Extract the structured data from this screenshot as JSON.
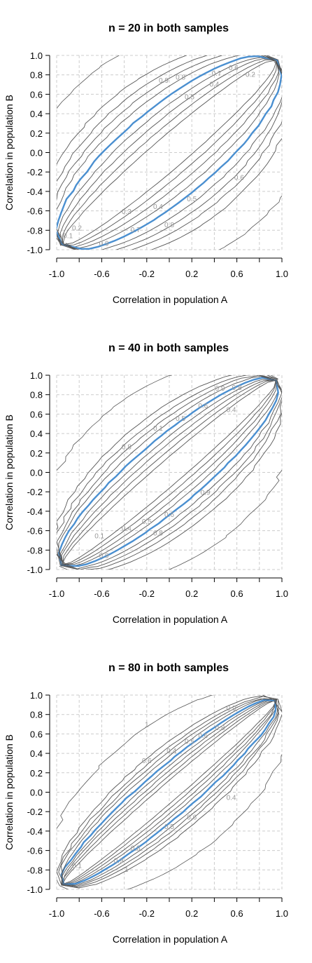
{
  "chart_data": [
    {
      "type": "contour",
      "title": "n = 20 in both samples",
      "xlabel": "Correlation in population A",
      "ylabel": "Correlation in population B",
      "xlim": [
        -1.0,
        1.0
      ],
      "ylim": [
        -1.0,
        1.0
      ],
      "x_ticks": [
        "-1.0",
        "-0.6",
        "-0.2",
        "0.2",
        "0.6",
        "1.0"
      ],
      "y_ticks": [
        "1.0",
        "0.8",
        "0.6",
        "0.4",
        "0.2",
        "0.0",
        "-0.2",
        "-0.4",
        "-0.6",
        "-0.8",
        "-1.0"
      ],
      "grid": true,
      "contour_levels": [
        0.1,
        0.2,
        0.3,
        0.4,
        0.5,
        0.6,
        0.7,
        0.8,
        0.9,
        1
      ],
      "highlight_level": 0.8,
      "highlight_color": "#4a8fd0",
      "contour_color": "#555555",
      "contour_labels": [
        {
          "text": "0.9",
          "x": -0.05,
          "y": 0.72
        },
        {
          "text": "0.8",
          "x": 0.1,
          "y": 0.75
        },
        {
          "text": "0.7",
          "x": 0.42,
          "y": 0.79
        },
        {
          "text": "0.6",
          "x": 0.57,
          "y": 0.85
        },
        {
          "text": "0.5",
          "x": 0.18,
          "y": 0.55
        },
        {
          "text": "0.4",
          "x": 0.4,
          "y": 0.68
        },
        {
          "text": "0.2",
          "x": 0.72,
          "y": 0.78
        },
        {
          "text": "0.6",
          "x": 0.62,
          "y": -0.28
        },
        {
          "text": "0.5",
          "x": 0.2,
          "y": -0.5
        },
        {
          "text": "0.4",
          "x": -0.1,
          "y": -0.58
        },
        {
          "text": "0.3",
          "x": -0.38,
          "y": -0.63
        },
        {
          "text": "0.8",
          "x": -0.0,
          "y": -0.77
        },
        {
          "text": "0.7",
          "x": -0.3,
          "y": -0.82
        },
        {
          "text": "0.2",
          "x": -0.82,
          "y": -0.8
        },
        {
          "text": "0.1",
          "x": -0.9,
          "y": -0.88
        },
        {
          "text": "0.9",
          "x": -0.58,
          "y": -0.96
        }
      ],
      "width_scale": 1.0
    },
    {
      "type": "contour",
      "title": "n = 40 in both samples",
      "xlabel": "Correlation in population A",
      "ylabel": "Correlation in population B",
      "xlim": [
        -1.0,
        1.0
      ],
      "ylim": [
        -1.0,
        1.0
      ],
      "x_ticks": [
        "-1.0",
        "-0.6",
        "-0.2",
        "0.2",
        "0.6",
        "1.0"
      ],
      "y_ticks": [
        "1.0",
        "0.8",
        "0.6",
        "0.4",
        "0.2",
        "0.0",
        "-0.2",
        "-0.4",
        "-0.6",
        "-0.8",
        "-1.0"
      ],
      "grid": true,
      "contour_levels": [
        0.1,
        0.2,
        0.3,
        0.4,
        0.5,
        0.6,
        0.7,
        0.8,
        0.9,
        1
      ],
      "highlight_level": 0.8,
      "highlight_color": "#4a8fd0",
      "contour_color": "#555555",
      "contour_labels": [
        {
          "text": "0.9",
          "x": 0.45,
          "y": 0.84
        },
        {
          "text": "0.8",
          "x": 0.6,
          "y": 0.85
        },
        {
          "text": "0.6",
          "x": 0.3,
          "y": 0.66
        },
        {
          "text": "0.5",
          "x": 0.1,
          "y": 0.53
        },
        {
          "text": "0.4",
          "x": 0.55,
          "y": 0.62
        },
        {
          "text": "0.1",
          "x": -0.1,
          "y": 0.43
        },
        {
          "text": "0.8",
          "x": -0.38,
          "y": 0.24
        },
        {
          "text": "0.9",
          "x": 0.32,
          "y": -0.23
        },
        {
          "text": "0.6",
          "x": -0.0,
          "y": -0.46
        },
        {
          "text": "0.5",
          "x": -0.2,
          "y": -0.53
        },
        {
          "text": "0.4",
          "x": -0.38,
          "y": -0.6
        },
        {
          "text": "0.8",
          "x": -0.1,
          "y": -0.65
        },
        {
          "text": "0.1",
          "x": -0.62,
          "y": -0.68
        },
        {
          "text": "0.9",
          "x": -0.58,
          "y": -0.88
        }
      ],
      "width_scale": 0.72
    },
    {
      "type": "contour",
      "title": "n = 80 in both samples",
      "xlabel": "Correlation in population A",
      "ylabel": "Correlation in population B",
      "xlim": [
        -1.0,
        1.0
      ],
      "ylim": [
        -1.0,
        1.0
      ],
      "x_ticks": [
        "-1.0",
        "-0.6",
        "-0.2",
        "0.2",
        "0.6",
        "1.0"
      ],
      "y_ticks": [
        "1.0",
        "0.8",
        "0.6",
        "0.4",
        "0.2",
        "0.0",
        "-0.2",
        "-0.4",
        "-0.6",
        "-0.8",
        "-1.0"
      ],
      "grid": true,
      "contour_levels": [
        0.1,
        0.2,
        0.3,
        0.4,
        0.5,
        0.6,
        0.7,
        0.8,
        0.9,
        1
      ],
      "highlight_level": 0.8,
      "highlight_color": "#4a8fd0",
      "contour_color": "#555555",
      "contour_labels": [
        {
          "text": "0.9",
          "x": 0.55,
          "y": 0.84
        },
        {
          "text": "0.8",
          "x": 0.45,
          "y": 0.64
        },
        {
          "text": "0.6",
          "x": 0.3,
          "y": 0.56
        },
        {
          "text": "0.5",
          "x": 0.18,
          "y": 0.5
        },
        {
          "text": "0.4",
          "x": 0.02,
          "y": 0.4
        },
        {
          "text": "0.6",
          "x": -0.2,
          "y": 0.3
        },
        {
          "text": "1",
          "x": -0.2,
          "y": 0.67
        },
        {
          "text": "0.4",
          "x": 0.55,
          "y": -0.08
        },
        {
          "text": "0.6",
          "x": 0.2,
          "y": -0.28
        },
        {
          "text": "0.5",
          "x": 0.0,
          "y": -0.38
        },
        {
          "text": "0.8",
          "x": -0.3,
          "y": -0.6
        },
        {
          "text": "0.9",
          "x": -0.45,
          "y": -0.73
        },
        {
          "text": "0.1",
          "x": -0.82,
          "y": -0.78
        },
        {
          "text": "1",
          "x": -0.38,
          "y": -0.82
        }
      ],
      "width_scale": 0.5
    }
  ]
}
